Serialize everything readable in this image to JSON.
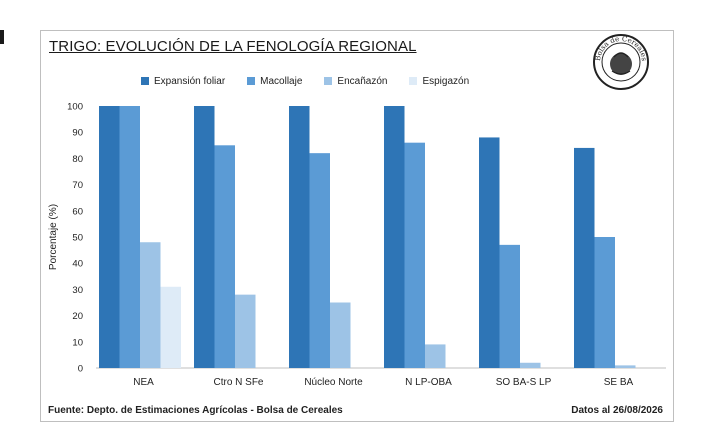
{
  "title": "TRIGO: EVOLUCIÓN DE LA FENOLOGÍA REGIONAL",
  "logo_text": "Bolsa de Cereales",
  "footer_left": "Fuente: Depto. de Estimaciones Agrícolas - Bolsa de Cereales",
  "footer_right": "Datos al 26/08/2026",
  "chart_data": {
    "type": "bar",
    "title": "TRIGO: EVOLUCIÓN DE LA FENOLOGÍA REGIONAL",
    "xlabel": "",
    "ylabel": "Porcentaje (%)",
    "ylim": [
      0,
      100
    ],
    "yticks": [
      0,
      10,
      20,
      30,
      40,
      50,
      60,
      70,
      80,
      90,
      100
    ],
    "grid": false,
    "legend_position": "top",
    "categories": [
      "NEA",
      "Ctro N SFe",
      "Núcleo Norte",
      "N LP-OBA",
      "SO BA-S LP",
      "SE BA"
    ],
    "series": [
      {
        "name": "Expansión foliar",
        "color": "#2e75b6",
        "values": [
          100,
          100,
          100,
          100,
          88,
          84
        ]
      },
      {
        "name": "Macollaje",
        "color": "#5b9bd5",
        "values": [
          100,
          85,
          82,
          86,
          47,
          50
        ]
      },
      {
        "name": "Encañazón",
        "color": "#9dc3e6",
        "values": [
          48,
          28,
          25,
          9,
          2,
          1
        ]
      },
      {
        "name": "Espigazón",
        "color": "#deebf7",
        "values": [
          31,
          0,
          0,
          0,
          0,
          0
        ]
      }
    ]
  }
}
